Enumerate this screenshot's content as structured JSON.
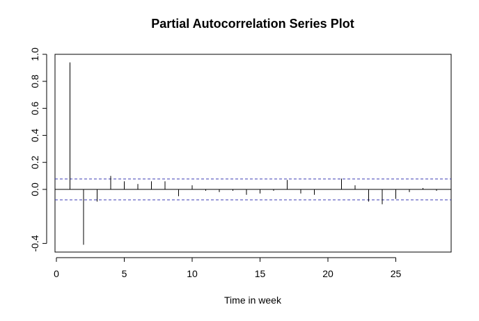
{
  "chart_data": {
    "type": "bar",
    "title": "Partial Autocorrelation Series Plot",
    "xlabel": "Time in week",
    "ylabel": "",
    "xlim": [
      0,
      29
    ],
    "ylim": [
      -0.46,
      1.0
    ],
    "x_ticks": [
      0,
      5,
      10,
      15,
      20,
      25
    ],
    "y_ticks": [
      -0.4,
      0.0,
      0.2,
      0.4,
      0.6,
      0.8,
      1.0
    ],
    "x_tick_labels": [
      "0",
      "5",
      "10",
      "15",
      "20",
      "25"
    ],
    "y_tick_labels": [
      "-0.4",
      "0.0",
      "0.2",
      "0.4",
      "0.6",
      "0.8",
      "1.0"
    ],
    "lags": [
      1,
      2,
      3,
      4,
      5,
      6,
      7,
      8,
      9,
      10,
      11,
      12,
      13,
      14,
      15,
      16,
      17,
      18,
      19,
      20,
      21,
      22,
      23,
      24,
      25,
      26,
      27,
      28
    ],
    "values": [
      0.94,
      -0.41,
      -0.09,
      0.1,
      0.06,
      0.04,
      0.06,
      0.06,
      -0.05,
      0.03,
      -0.01,
      -0.02,
      -0.01,
      -0.04,
      -0.03,
      -0.01,
      0.07,
      -0.03,
      -0.04,
      0.0,
      0.08,
      0.03,
      -0.09,
      -0.11,
      -0.07,
      -0.02,
      0.01,
      -0.01
    ],
    "confidence_limit": 0.077,
    "confidence_color": "#3b3bb3",
    "bar_color": "#000000",
    "grid": false,
    "legend": "none"
  }
}
